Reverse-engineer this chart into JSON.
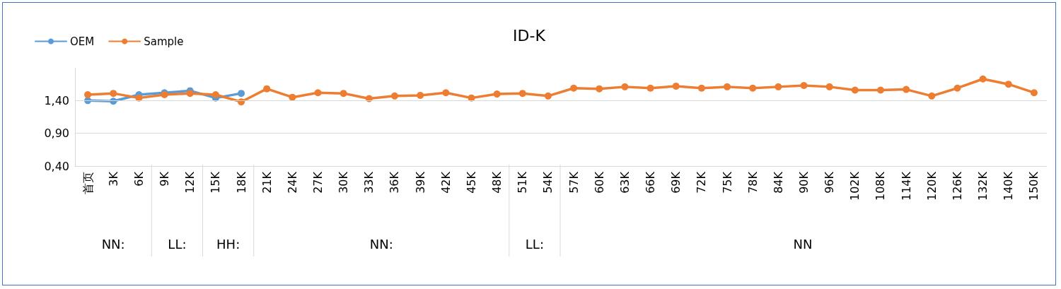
{
  "chart_data": {
    "type": "line",
    "title": "ID-K",
    "categories": [
      "首页",
      "3K",
      "6K",
      "9K",
      "12K",
      "15K",
      "18K",
      "21K",
      "24K",
      "27K",
      "30K",
      "33K",
      "36K",
      "39K",
      "42K",
      "45K",
      "48K",
      "51K",
      "54K",
      "57K",
      "60K",
      "63K",
      "66K",
      "69K",
      "72K",
      "75K",
      "78K",
      "84K",
      "90K",
      "96K",
      "102K",
      "108K",
      "114K",
      "120K",
      "126K",
      "132K",
      "140K",
      "150K"
    ],
    "series": [
      {
        "name": "OEM",
        "color": "#5b9bd5",
        "values": [
          1.4,
          1.39,
          1.49,
          1.52,
          1.55,
          1.44,
          1.51,
          null,
          null,
          null,
          null,
          null,
          null,
          null,
          null,
          null,
          null,
          null,
          null,
          null,
          null,
          null,
          null,
          null,
          null,
          null,
          null,
          null,
          null,
          null,
          null,
          null,
          null,
          null,
          null,
          null,
          null,
          null
        ]
      },
      {
        "name": "Sample",
        "color": "#ed7d31",
        "values": [
          1.49,
          1.51,
          1.44,
          1.49,
          1.51,
          1.49,
          1.38,
          1.58,
          1.45,
          1.52,
          1.51,
          1.43,
          1.47,
          1.48,
          1.52,
          1.44,
          1.5,
          1.51,
          1.47,
          1.59,
          1.58,
          1.61,
          1.59,
          1.62,
          1.59,
          1.61,
          1.59,
          1.61,
          1.63,
          1.61,
          1.56,
          1.56,
          1.57,
          1.47,
          1.59,
          1.73,
          1.65,
          1.52
        ]
      }
    ],
    "ylim": [
      0.4,
      1.9
    ],
    "yticks": [
      {
        "value": 0.4,
        "label": "0,40"
      },
      {
        "value": 0.9,
        "label": "0,90"
      },
      {
        "value": 1.4,
        "label": "1,40"
      }
    ],
    "annotations": [
      "NN:",
      "LL:",
      "HH:",
      "NN:",
      "LL:",
      "NN"
    ],
    "grid": "y",
    "legend": "top left",
    "marker": "circle",
    "line_style": "solid"
  }
}
